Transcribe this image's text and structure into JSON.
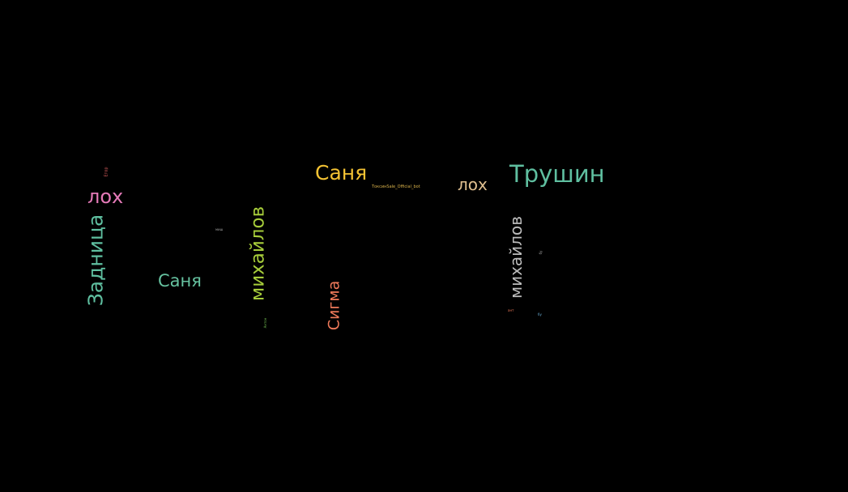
{
  "background": "#000000",
  "words": {
    "sanya_top": {
      "text": "Саня",
      "color": "#f3c233"
    },
    "trushin": {
      "text": "Трушин",
      "color": "#5fbfa0"
    },
    "lokh_right": {
      "text": "лох",
      "color": "#e0c090"
    },
    "lokh_left": {
      "text": "лох",
      "color": "#e57ab8"
    },
    "bot": {
      "text": "ТоксинSale_Official_bot",
      "color": "#d9b24a"
    },
    "sanya_mid": {
      "text": "Саня",
      "color": "#66c2a0"
    },
    "zadnitsa": {
      "text": "Задница",
      "color": "#5fbfa0"
    },
    "mikh_green": {
      "text": "михайлов",
      "color": "#a6cc3a"
    },
    "mikh_grey": {
      "text": "михайлов",
      "color": "#bdbdbd"
    },
    "sigma": {
      "text": "Сигма",
      "color": "#f07a5a"
    },
    "tiny_egor": {
      "text": "Егор",
      "color": "#e06060"
    },
    "tiny_mid": {
      "text": "миш",
      "color": "#a0a0a0"
    },
    "tiny_anton": {
      "text": "Антон",
      "color": "#6ab04c"
    },
    "tiny_right1": {
      "text": "бу",
      "color": "#a0a0a0"
    },
    "tiny_right2": {
      "text": "ант",
      "color": "#f07a5a"
    },
    "tiny_right3": {
      "text": "бу",
      "color": "#6aaed6"
    }
  }
}
